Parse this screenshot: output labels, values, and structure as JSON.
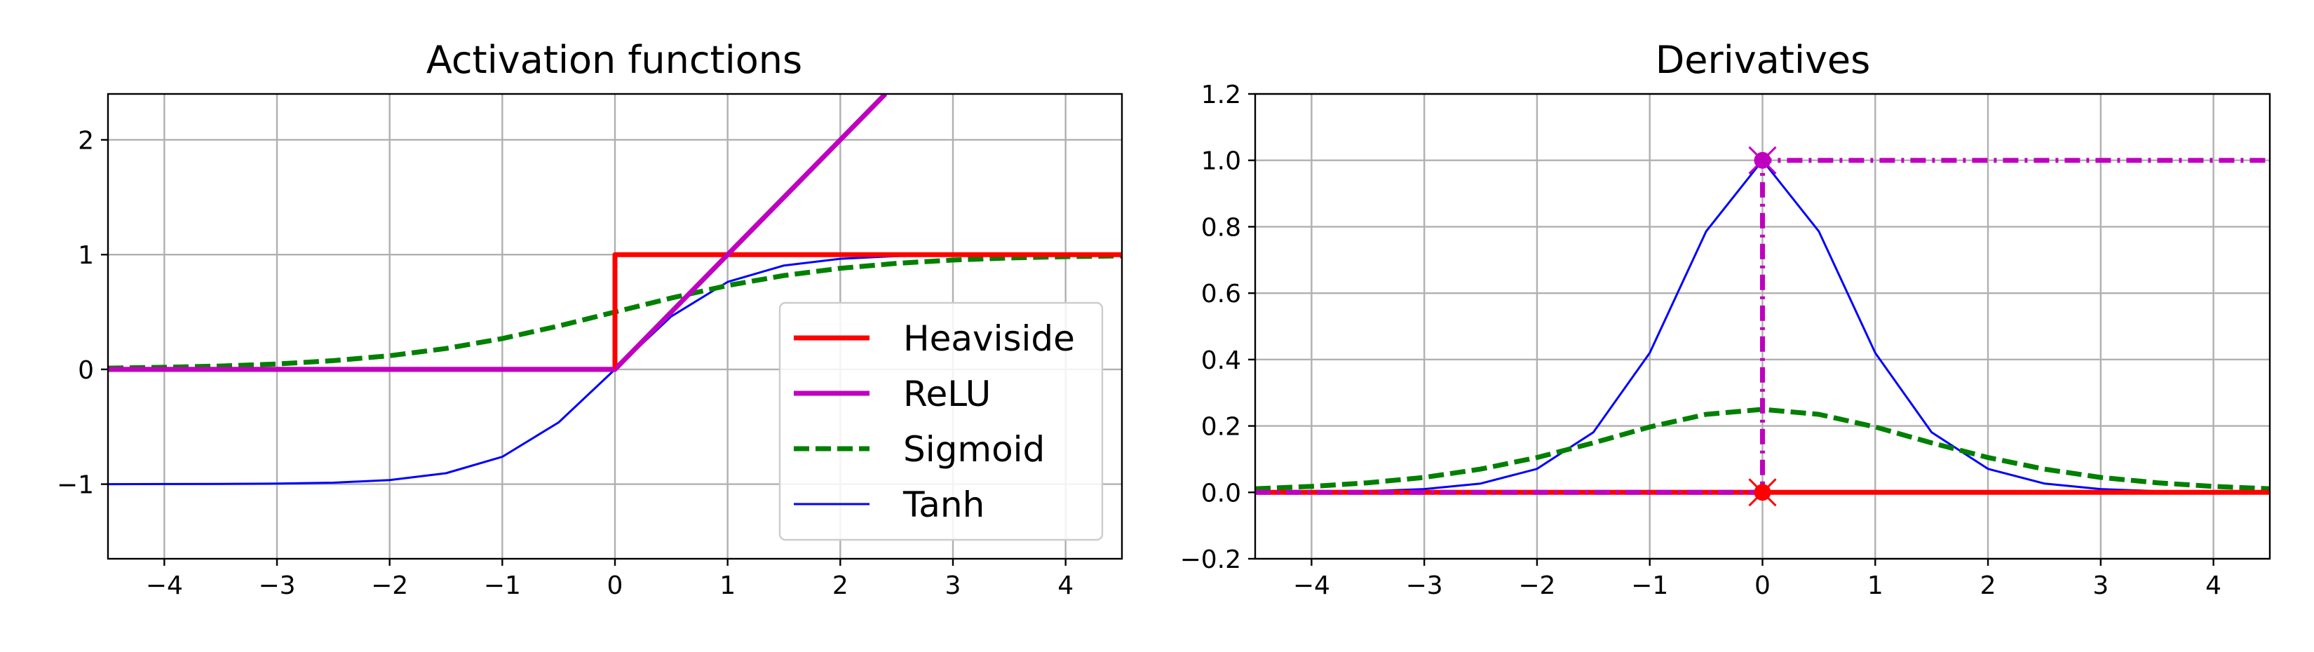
{
  "chart_data": [
    {
      "type": "line",
      "title": "Activation functions",
      "xlabel": "",
      "ylabel": "",
      "xlim": [
        -4.5,
        4.5
      ],
      "ylim": [
        -1.65,
        2.4
      ],
      "x_ticks": [
        -4,
        -3,
        -2,
        -1,
        0,
        1,
        2,
        3,
        4
      ],
      "x_tick_labels": [
        "−4",
        "−3",
        "−2",
        "−1",
        "0",
        "1",
        "2",
        "3",
        "4"
      ],
      "y_ticks": [
        -1,
        0,
        1,
        2
      ],
      "y_tick_labels": [
        "−1",
        "0",
        "1",
        "2"
      ],
      "grid": true,
      "legend_position": "lower right",
      "series": [
        {
          "name": "Heaviside",
          "color": "#ff0000",
          "style": "solid",
          "x": [
            -4.5,
            0,
            0,
            4.5
          ],
          "y": [
            0,
            0,
            1,
            1
          ]
        },
        {
          "name": "ReLU",
          "color": "#bf00bf",
          "style": "solid",
          "x": [
            -4.5,
            0,
            2.4
          ],
          "y": [
            0,
            0,
            2.4
          ]
        },
        {
          "name": "Sigmoid",
          "color": "#008000",
          "style": "dashed",
          "x": [
            -4.5,
            -4,
            -3.5,
            -3,
            -2.5,
            -2,
            -1.5,
            -1,
            -0.5,
            0,
            0.5,
            1,
            1.5,
            2,
            2.5,
            3,
            3.5,
            4,
            4.5
          ],
          "y": [
            0.011,
            0.018,
            0.029,
            0.047,
            0.076,
            0.119,
            0.182,
            0.269,
            0.378,
            0.5,
            0.622,
            0.731,
            0.818,
            0.881,
            0.924,
            0.953,
            0.971,
            0.982,
            0.989
          ]
        },
        {
          "name": "Tanh",
          "color": "#0000ff",
          "style": "solid",
          "x": [
            -4.5,
            -4,
            -3.5,
            -3,
            -2.5,
            -2,
            -1.5,
            -1,
            -0.5,
            0,
            0.5,
            1,
            1.5,
            2,
            2.5,
            3,
            3.5,
            4,
            4.5
          ],
          "y": [
            -1.0,
            -0.999,
            -0.998,
            -0.995,
            -0.987,
            -0.964,
            -0.905,
            -0.762,
            -0.462,
            0,
            0.462,
            0.762,
            0.905,
            0.964,
            0.987,
            0.995,
            0.998,
            0.999,
            1.0
          ]
        }
      ]
    },
    {
      "type": "line",
      "title": "Derivatives",
      "xlabel": "",
      "ylabel": "",
      "xlim": [
        -4.5,
        4.5
      ],
      "ylim": [
        -0.2,
        1.2
      ],
      "x_ticks": [
        -4,
        -3,
        -2,
        -1,
        0,
        1,
        2,
        3,
        4
      ],
      "x_tick_labels": [
        "−4",
        "−3",
        "−2",
        "−1",
        "0",
        "1",
        "2",
        "3",
        "4"
      ],
      "y_ticks": [
        -0.2,
        0.0,
        0.2,
        0.4,
        0.6,
        0.8,
        1.0,
        1.2
      ],
      "y_tick_labels": [
        "−0.2",
        "0.0",
        "0.2",
        "0.4",
        "0.6",
        "0.8",
        "1.0",
        "1.2"
      ],
      "grid": true,
      "series": [
        {
          "color": "#ff0000",
          "style": "solid",
          "x": [
            -4.5,
            4.5
          ],
          "y": [
            0,
            0
          ],
          "markers": [
            {
              "x": 0,
              "y": 0
            }
          ]
        },
        {
          "color": "#bf00bf",
          "style": "dashdot",
          "x": [
            -4.5,
            0,
            0,
            4.5
          ],
          "y": [
            0,
            0,
            1,
            1
          ],
          "markers": [
            {
              "x": 0,
              "y": 1
            }
          ]
        },
        {
          "color": "#008000",
          "style": "dashed",
          "x": [
            -4.5,
            -4,
            -3.5,
            -3,
            -2.5,
            -2,
            -1.5,
            -1,
            -0.5,
            0,
            0.5,
            1,
            1.5,
            2,
            2.5,
            3,
            3.5,
            4,
            4.5
          ],
          "y": [
            0.011,
            0.018,
            0.029,
            0.045,
            0.07,
            0.105,
            0.149,
            0.197,
            0.235,
            0.25,
            0.235,
            0.197,
            0.149,
            0.105,
            0.07,
            0.045,
            0.029,
            0.018,
            0.011
          ]
        },
        {
          "color": "#0000ff",
          "style": "solid",
          "x": [
            -4.5,
            -4,
            -3.5,
            -3,
            -2.5,
            -2,
            -1.5,
            -1,
            -0.5,
            0,
            0.5,
            1,
            1.5,
            2,
            2.5,
            3,
            3.5,
            4,
            4.5
          ],
          "y": [
            0.0005,
            0.0013,
            0.0036,
            0.0099,
            0.0266,
            0.0707,
            0.181,
            0.42,
            0.786,
            1.0,
            0.786,
            0.42,
            0.181,
            0.0707,
            0.0266,
            0.0099,
            0.0036,
            0.0013,
            0.0005
          ]
        }
      ]
    }
  ]
}
